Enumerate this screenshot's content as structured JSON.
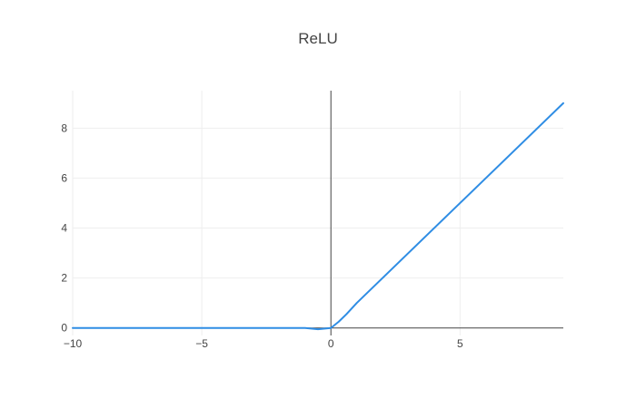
{
  "chart_data": {
    "type": "line",
    "title": "ReLU",
    "xlabel": "",
    "ylabel": "",
    "xlim": [
      -10,
      9
    ],
    "ylim": [
      -0.3,
      9.5
    ],
    "x_ticks": [
      -10,
      -5,
      0,
      5
    ],
    "x_tick_labels": [
      "−10",
      "−5",
      "0",
      "5"
    ],
    "y_ticks": [
      0,
      2,
      4,
      6,
      8
    ],
    "y_tick_labels": [
      "0",
      "2",
      "4",
      "6",
      "8"
    ],
    "grid": true,
    "legend": "none",
    "series": [
      {
        "color": "#1f77b4",
        "x": [
          -10,
          -1,
          -0.5,
          0,
          0.3,
          0.6,
          1,
          9
        ],
        "y": [
          0,
          0,
          -0.05,
          0,
          0.25,
          0.55,
          1,
          9
        ]
      }
    ]
  }
}
